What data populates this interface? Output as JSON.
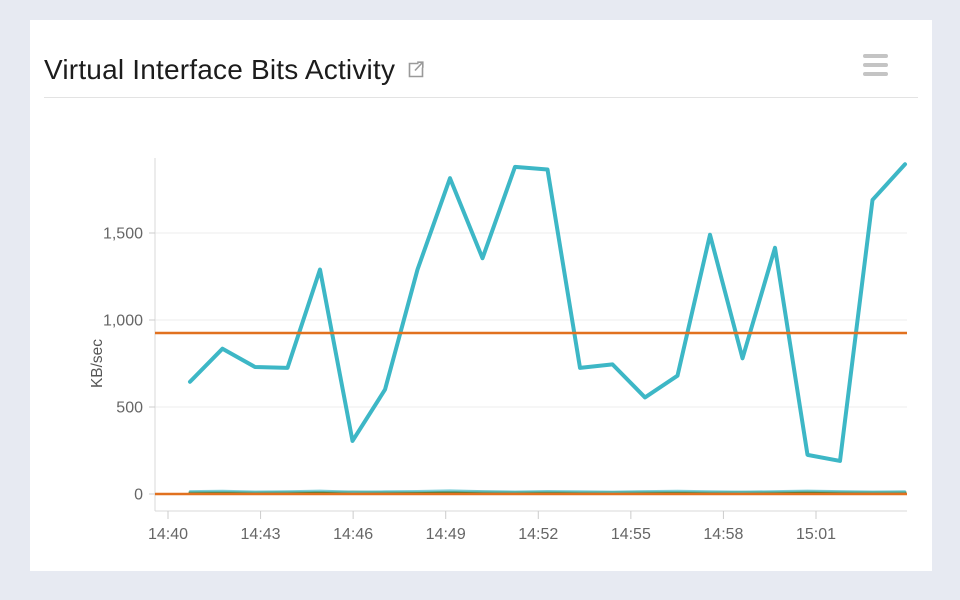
{
  "window": {
    "background_color": "#e7eaf2",
    "card_background_color": "#ffffff"
  },
  "header": {
    "title": "Virtual Interface Bits Activity",
    "external_link_icon": "open-in-new-window-icon",
    "menu_icon": "hamburger-menu-icon",
    "icon_color": "#9a9a9a",
    "menu_bar_color": "#c4c4c4"
  },
  "chart_data": {
    "type": "line",
    "title": "Virtual Interface Bits Activity",
    "xlabel": "",
    "ylabel": "KB/sec",
    "grid": "horizontal",
    "legend_position": "none",
    "y_ticks": [
      0,
      500,
      1000,
      1500
    ],
    "y_tick_labels": [
      "0",
      "500",
      "1,000",
      "1,500"
    ],
    "ylim_display": [
      -95,
      1930
    ],
    "x_tick_labels": [
      "14:40",
      "14:43",
      "14:46",
      "14:49",
      "14:52",
      "14:55",
      "14:58",
      "15:01"
    ],
    "x": [
      "14:41",
      "14:42",
      "14:43",
      "14:44",
      "14:45",
      "14:46",
      "14:47",
      "14:48",
      "14:49",
      "14:50",
      "14:51",
      "14:52",
      "14:53",
      "14:54",
      "14:55",
      "14:56",
      "14:57",
      "14:58",
      "14:59",
      "15:00",
      "15:01",
      "15:02",
      "15:03"
    ],
    "series": [
      {
        "name": "near-zero-green-line",
        "color": "#4e7e3b",
        "width": 2.8,
        "opacity": 1,
        "values": [
          9,
          10,
          8,
          10,
          9,
          11,
          9,
          8,
          10,
          11,
          9,
          10,
          8,
          9,
          10,
          9,
          8,
          10,
          9,
          11,
          10,
          9,
          10
        ]
      },
      {
        "name": "near-zero-teal-line",
        "color": "#5ec3ce",
        "width": 2.2,
        "opacity": 0.8,
        "values": [
          16,
          18,
          14,
          15,
          19,
          13,
          15,
          17,
          20,
          16,
          14,
          17,
          15,
          13,
          16,
          18,
          15,
          13,
          16,
          19,
          16,
          14,
          15
        ]
      },
      {
        "name": "main-teal-line",
        "color": "#3db7c6",
        "width": 4,
        "opacity": 1,
        "values": [
          645,
          835,
          730,
          725,
          1290,
          305,
          600,
          1290,
          1815,
          1355,
          1880,
          1865,
          725,
          745,
          555,
          680,
          1490,
          780,
          1415,
          225,
          190,
          1690,
          1895
        ]
      }
    ],
    "threshold_lines": [
      {
        "name": "upper-threshold-line",
        "value": 925,
        "color": "#e1711f",
        "width": 2.5
      },
      {
        "name": "zero-threshold-line",
        "value": 0,
        "color": "#e1711f",
        "width": 2.5
      }
    ],
    "axis_text_color": "#666666",
    "axis_line_color": "#d9d9d9",
    "gridline_color": "#ededed"
  }
}
